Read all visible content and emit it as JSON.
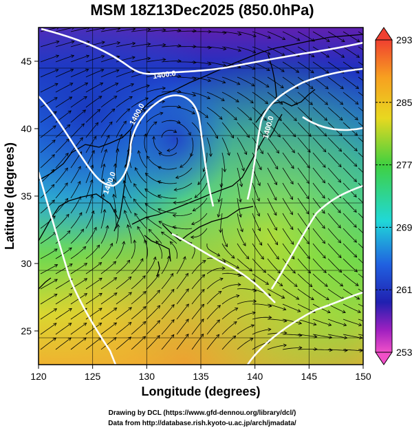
{
  "title": "MSM 18Z13Dec2025 (850.0hPa)",
  "map": {
    "lon_range": [
      120,
      150
    ],
    "lat_range": [
      22.5,
      47.5
    ],
    "lon_ticks": [
      120,
      125,
      130,
      135,
      140,
      145,
      150
    ],
    "lat_ticks": [
      25,
      30,
      35,
      40,
      45
    ],
    "xlabel": "Longitude (degrees)",
    "ylabel": "Latitude  (degrees)",
    "shading": "temperature",
    "vectors": "streamlines",
    "contour_color": "#ffffff",
    "contour_labels": [
      "1400.0",
      "1400.0",
      "1400.0",
      "1400.0"
    ]
  },
  "colorbar": {
    "ticks": [
      "293",
      "285",
      "277",
      "269",
      "261",
      "253"
    ],
    "colors": [
      "#f06a40",
      "#f7a020",
      "#d8e030",
      "#30d040",
      "#20d8d8",
      "#2060e0",
      "#2020b8",
      "#a020c0",
      "#f050c8"
    ]
  },
  "credits": {
    "line1": "Drawing by DCL (https://www.gfd-dennou.org/library/dcl/)",
    "line2": "Data from http://database.rish.kyoto-u.ac.jp/arch/jmadata/"
  }
}
